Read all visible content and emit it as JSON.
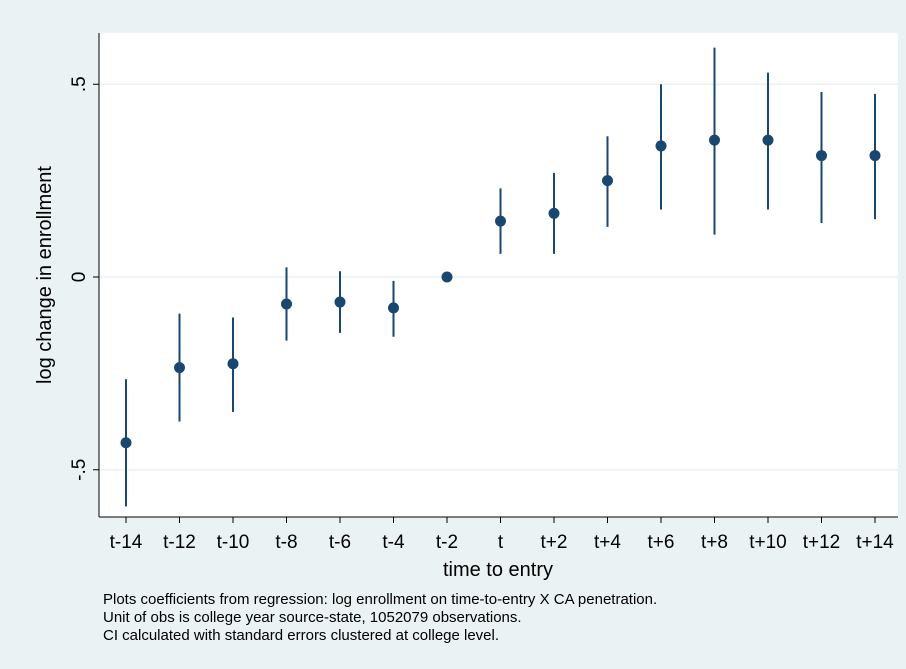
{
  "chart_data": {
    "type": "scatter",
    "subtype": "coefficient-plot-with-confidence-intervals",
    "xlabel": "time to entry",
    "ylabel": "log change in enrollment",
    "categories": [
      "t-14",
      "t-12",
      "t-10",
      "t-8",
      "t-6",
      "t-4",
      "t-2",
      "t",
      "t+2",
      "t+4",
      "t+6",
      "t+8",
      "t+10",
      "t+12",
      "t+14"
    ],
    "values": [
      -0.43,
      -0.235,
      -0.225,
      -0.07,
      -0.065,
      -0.08,
      0.0,
      0.145,
      0.165,
      0.25,
      0.34,
      0.355,
      0.355,
      0.315,
      0.315
    ],
    "ci_low": [
      -0.595,
      -0.375,
      -0.35,
      -0.165,
      -0.145,
      -0.155,
      0.0,
      0.06,
      0.06,
      0.13,
      0.175,
      0.11,
      0.175,
      0.14,
      0.15
    ],
    "ci_high": [
      -0.265,
      -0.095,
      -0.105,
      0.025,
      0.015,
      -0.01,
      0.0,
      0.23,
      0.27,
      0.365,
      0.5,
      0.595,
      0.53,
      0.48,
      0.475
    ],
    "ylim": [
      -0.6,
      0.625
    ],
    "yticks": [
      -0.5,
      0,
      0.5
    ],
    "ytick_labels": [
      "-.5",
      "0",
      ".5"
    ],
    "grid": true,
    "colors": {
      "marker": "#1a476f",
      "plot_bg": "#ffffff",
      "outer_bg": "#eaf2f3",
      "grid": "#eaf2f3"
    },
    "notes": [
      "Plots coefficients from regression: log enrollment on time-to-entry X CA penetration.",
      "Unit of obs is college year source-state, 1052079 observations.",
      "CI calculated with standard errors clustered at college level."
    ]
  }
}
